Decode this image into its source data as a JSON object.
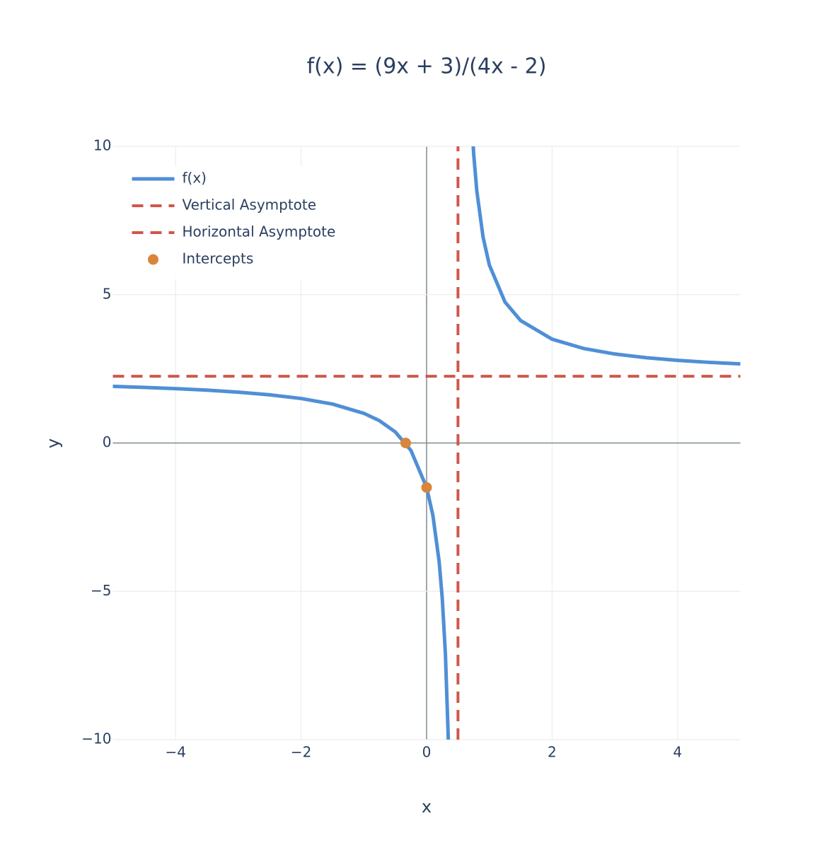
{
  "chart_data": {
    "type": "line",
    "title": "f(x) = (9x + 3)/(4x - 2)",
    "x_label": "x",
    "y_label": "y",
    "xlim": [
      -5,
      5
    ],
    "ylim": [
      -10,
      10
    ],
    "xticks": [
      {
        "value": -4,
        "label": "−4"
      },
      {
        "value": -2,
        "label": "−2"
      },
      0,
      2,
      4
    ],
    "yticks": [
      {
        "value": -10,
        "label": "−10"
      },
      {
        "value": -5,
        "label": "−5"
      },
      0,
      5,
      10
    ],
    "grid": true,
    "zero_lines": true,
    "legend": "top-left",
    "series": [
      {
        "name": "f(x)",
        "color": "#4f8fd6",
        "mode": "lines",
        "dash": false,
        "x": [
          -5,
          -4.5,
          -4,
          -3.5,
          -3,
          -2.5,
          -2,
          -1.5,
          -1,
          -0.75,
          -0.5,
          -0.25,
          0,
          0.1,
          0.2,
          0.25,
          0.3,
          0.35,
          0.5,
          0.7,
          0.75,
          0.8,
          0.9,
          1,
          1.25,
          1.5,
          2,
          2.5,
          3,
          3.5,
          4,
          4.5,
          5
        ],
        "values": [
          1.909,
          1.875,
          1.833,
          1.781,
          1.714,
          1.625,
          1.5,
          1.3125,
          1,
          0.75,
          0.375,
          -0.25,
          -1.5,
          -2.4375,
          -4,
          -5.25,
          -7.125,
          -10.25,
          null,
          11.625,
          9.75,
          8.5,
          6.9375,
          6,
          4.75,
          4.125,
          3.5,
          3.1875,
          3,
          2.875,
          2.786,
          2.719,
          2.667
        ]
      },
      {
        "name": "Vertical Asymptote",
        "color": "#d0574a",
        "mode": "lines",
        "dash": true,
        "x": [
          0.5,
          0.5
        ],
        "values": [
          -10,
          10
        ]
      },
      {
        "name": "Horizontal Asymptote",
        "color": "#d0574a",
        "mode": "lines",
        "dash": true,
        "x": [
          -5,
          5
        ],
        "values": [
          2.25,
          2.25
        ]
      },
      {
        "name": "Intercepts",
        "color": "#d9853b",
        "mode": "markers",
        "dash": false,
        "x": [
          -0.333,
          0
        ],
        "values": [
          0,
          -1.5
        ]
      }
    ]
  }
}
